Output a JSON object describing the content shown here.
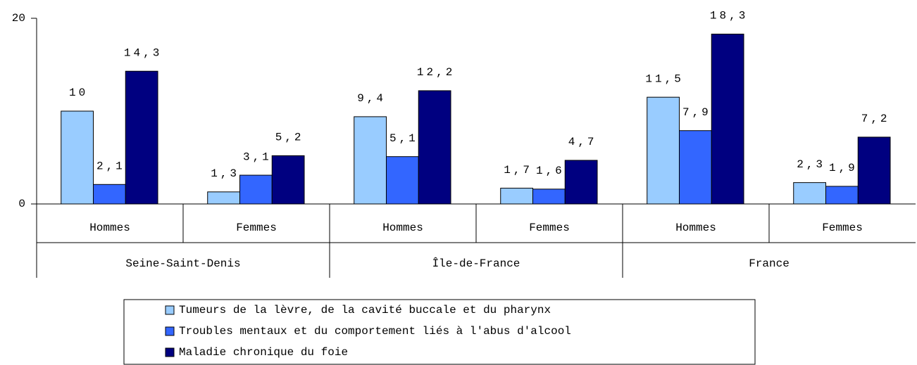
{
  "chart_data": {
    "type": "bar",
    "categories": [
      "Hommes",
      "Femmes",
      "Hommes",
      "Femmes",
      "Hommes",
      "Femmes"
    ],
    "groups": [
      "Seine-Saint-Denis",
      "Île-de-France",
      "France"
    ],
    "series": [
      {
        "name": "Tumeurs de la lèvre, de la cavité buccale et du pharynx",
        "color": "#99ccff",
        "values": [
          10,
          1.3,
          9.4,
          1.7,
          11.5,
          2.3
        ],
        "value_labels": [
          "10",
          "1,3",
          "9,4",
          "1,7",
          "11,5",
          "2,3"
        ]
      },
      {
        "name": "Troubles mentaux et du comportement liés à l'abus d'alcool",
        "color": "#3366ff",
        "values": [
          2.1,
          3.1,
          5.1,
          1.6,
          7.9,
          1.9
        ],
        "value_labels": [
          "2,1",
          "3,1",
          "5,1",
          "1,6",
          "7,9",
          "1,9"
        ]
      },
      {
        "name": "Maladie chronique du foie",
        "color": "#000080",
        "values": [
          14.3,
          5.2,
          12.2,
          4.7,
          18.3,
          7.2
        ],
        "value_labels": [
          "14,3",
          "5,2",
          "12,2",
          "4,7",
          "18,3",
          "7,2"
        ]
      }
    ],
    "ylim": [
      0,
      20
    ],
    "yticks": [
      0,
      20
    ],
    "grid": false,
    "legend": "bottom"
  }
}
